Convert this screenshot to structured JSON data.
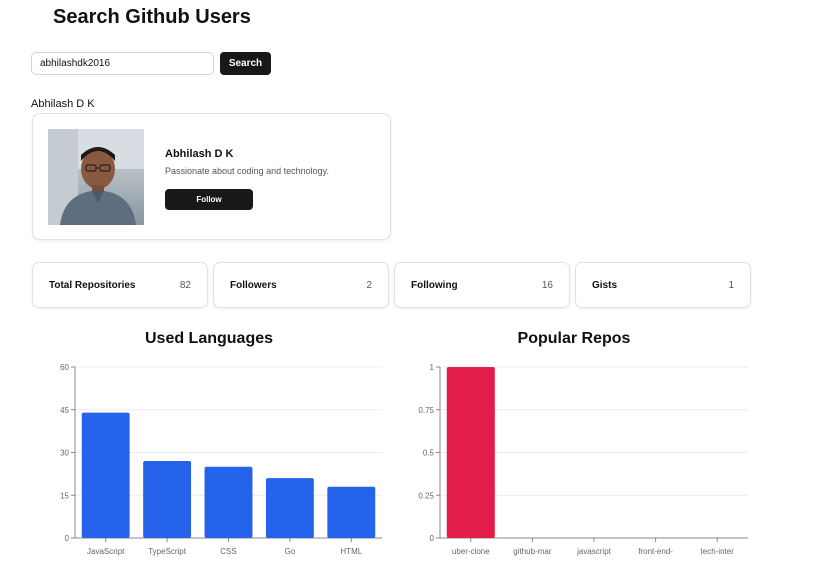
{
  "page": {
    "title": "Search Github Users"
  },
  "search": {
    "value": "abhilashdk2016",
    "button_label": "Search"
  },
  "result": {
    "name": "Abhilash D K"
  },
  "profile": {
    "name": "Abhilash D K",
    "bio": "Passionate about coding and technology.",
    "follow_label": "Follow",
    "avatar_icon": "user-photo"
  },
  "stats": [
    {
      "label": "Total Repositories",
      "value": "82"
    },
    {
      "label": "Followers",
      "value": "2"
    },
    {
      "label": "Following",
      "value": "16"
    },
    {
      "label": "Gists",
      "value": "1"
    }
  ],
  "colors": {
    "accent_dark": "#18181b",
    "bar_blue": "#2563eb",
    "bar_red": "#e11d48"
  },
  "chart_data": [
    {
      "type": "bar",
      "title": "Used Languages",
      "categories": [
        "JavaScript",
        "TypeScript",
        "CSS",
        "Go",
        "HTML"
      ],
      "values": [
        44,
        27,
        25,
        21,
        18
      ],
      "ylim": [
        0,
        60
      ],
      "yticks": [
        "0",
        "15",
        "30",
        "45",
        "60"
      ],
      "grid": true,
      "color": "#2563eb"
    },
    {
      "type": "bar",
      "title": "Popular Repos",
      "categories": [
        "uber-clone",
        "github-mar",
        "javascript",
        "front-end-",
        "tech-inter"
      ],
      "values": [
        1,
        0,
        0,
        0,
        0
      ],
      "ylim": [
        0,
        1
      ],
      "yticks": [
        "0",
        "0.25",
        "0.5",
        "0.75",
        "1"
      ],
      "grid": true,
      "color": "#e11d48"
    }
  ]
}
